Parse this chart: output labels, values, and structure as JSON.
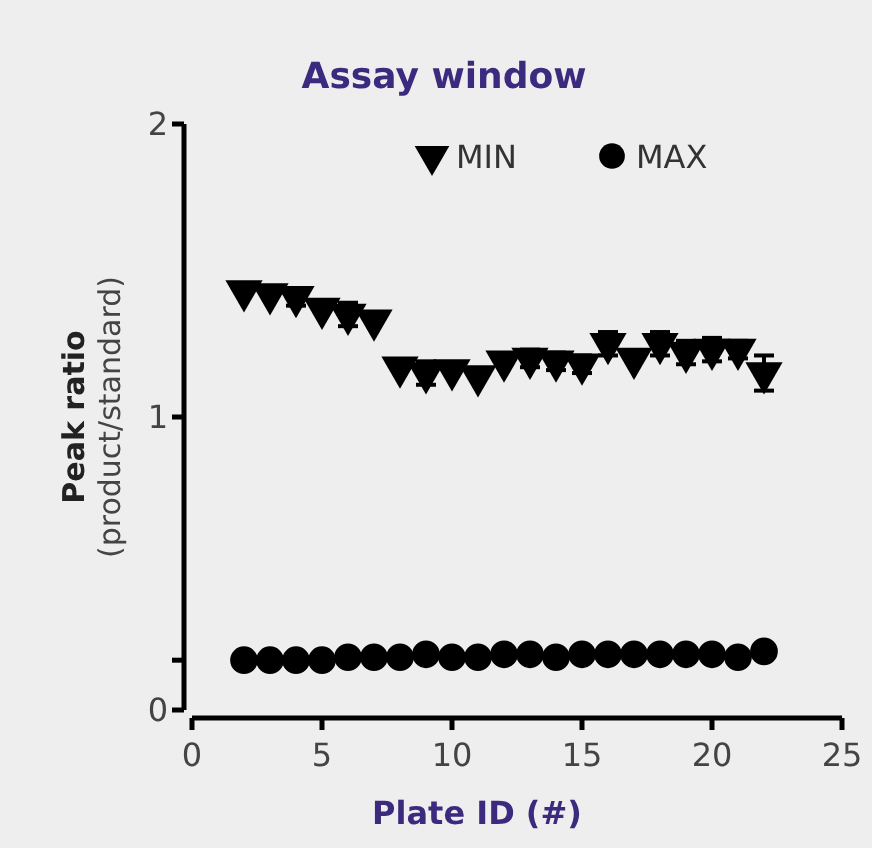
{
  "chart_data": {
    "type": "scatter",
    "title": "Assay window",
    "xlabel": "Plate ID (#)",
    "ylabel": "Peak ratio\n(product/standard)",
    "x": [
      2,
      3,
      4,
      5,
      6,
      7,
      8,
      9,
      10,
      11,
      12,
      13,
      14,
      15,
      16,
      17,
      18,
      19,
      20,
      21,
      22
    ],
    "xlim": [
      0,
      25
    ],
    "xticks": [
      0,
      5,
      10,
      15,
      20,
      25
    ],
    "ylim": [
      0,
      2
    ],
    "yticks": [
      0,
      {
        "value": 0.17,
        "label": null
      },
      1,
      2
    ],
    "series": [
      {
        "name": "MIN",
        "color": "#000000",
        "marker": "triangle",
        "values": [
          1.43,
          1.42,
          1.41,
          1.37,
          1.35,
          1.33,
          1.17,
          1.15,
          1.16,
          1.14,
          1.19,
          1.2,
          1.19,
          1.18,
          1.25,
          1.2,
          1.25,
          1.22,
          1.23,
          1.23,
          1.15
        ],
        "errors": [
          null,
          null,
          0.03,
          null,
          0.04,
          null,
          null,
          0.04,
          null,
          null,
          null,
          0.03,
          0.03,
          0.03,
          0.04,
          null,
          0.04,
          0.04,
          0.04,
          0.03,
          0.06
        ]
      },
      {
        "name": "MAX",
        "color": "#000000",
        "marker": "circle",
        "values": [
          0.17,
          0.17,
          0.17,
          0.17,
          0.18,
          0.18,
          0.18,
          0.19,
          0.18,
          0.18,
          0.19,
          0.19,
          0.18,
          0.19,
          0.19,
          0.19,
          0.19,
          0.19,
          0.19,
          0.18,
          0.2
        ]
      }
    ],
    "legend": "top right",
    "grid": false
  }
}
